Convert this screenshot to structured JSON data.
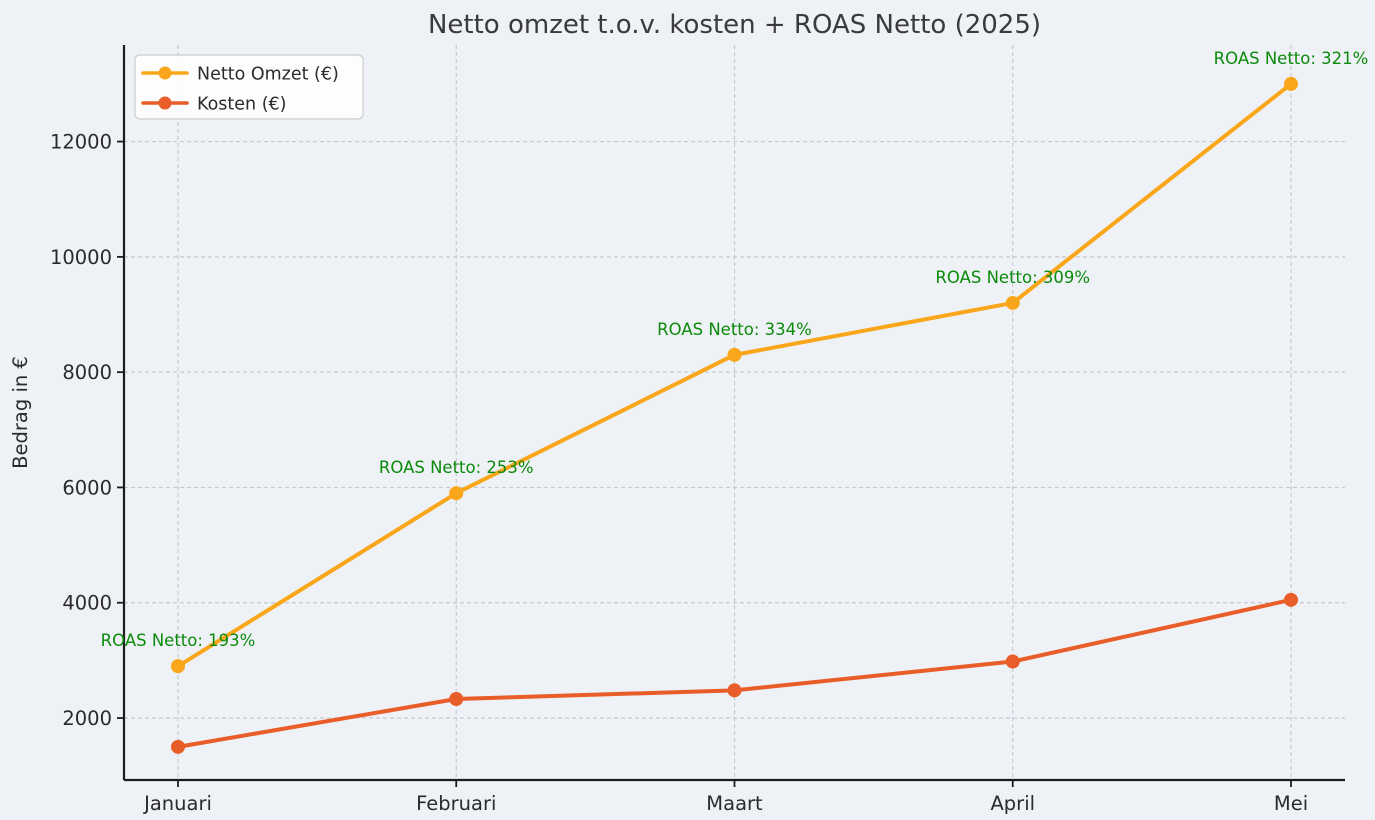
{
  "title": "Netto omzet t.o.v. kosten + ROAS Netto (2025)",
  "chart_data": {
    "type": "line",
    "categories": [
      "Januari",
      "Februari",
      "Maart",
      "April",
      "Mei"
    ],
    "series": [
      {
        "name": "Netto Omzet (€)",
        "values": [
          2900,
          5900,
          8300,
          9200,
          13000
        ],
        "color": "#FAA61A"
      },
      {
        "name": "Kosten (€)",
        "values": [
          1500,
          2330,
          2480,
          2980,
          4050
        ],
        "color": "#E95D28"
      }
    ],
    "annotations": [
      {
        "text": "ROAS Netto: 193%",
        "series": "Netto Omzet (€)",
        "point_index": 0
      },
      {
        "text": "ROAS Netto: 253%",
        "series": "Netto Omzet (€)",
        "point_index": 1
      },
      {
        "text": "ROAS Netto: 334%",
        "series": "Netto Omzet (€)",
        "point_index": 2
      },
      {
        "text": "ROAS Netto: 309%",
        "series": "Netto Omzet (€)",
        "point_index": 3
      },
      {
        "text": "ROAS Netto: 321%",
        "series": "Netto Omzet (€)",
        "point_index": 4
      }
    ],
    "xlabel": "",
    "ylabel": "Bedrag in €",
    "yticks": [
      2000,
      4000,
      6000,
      8000,
      10000,
      12000
    ],
    "ylim": [
      925,
      13675
    ],
    "grid": true,
    "grid_style": "dashed",
    "legend": {
      "position": "upper-left",
      "entries": [
        "Netto Omzet (€)",
        "Kosten (€)"
      ]
    },
    "colors": {
      "background": "#EEF1F5",
      "grid": "#C6CAD0",
      "axis": "#1C1C1C",
      "tick_label": "#2B2B2B",
      "title": "#3A3A3A",
      "annotation": "#0B8A0B",
      "legend_background": "#FFFFFF",
      "legend_border": "#CCCCCC"
    }
  }
}
